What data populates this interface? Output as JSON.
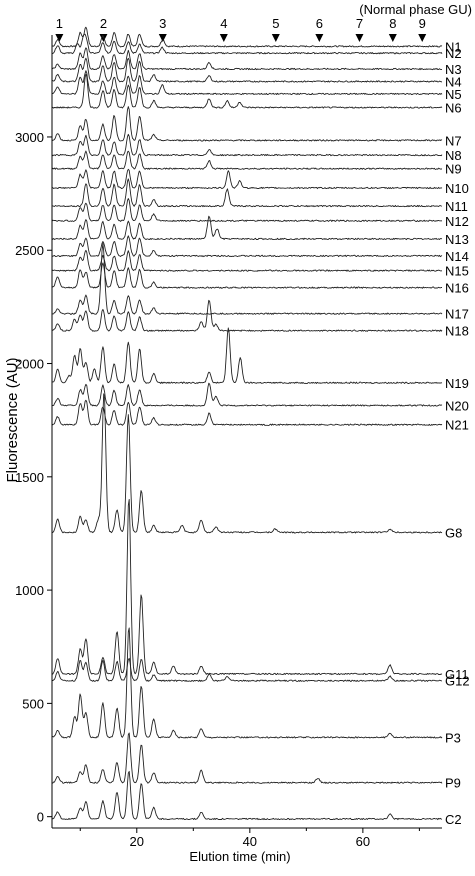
{
  "chart_data": {
    "type": "line",
    "title": "",
    "xlabel": "Elution time (min)",
    "ylabel": "Fluorescence (AU)",
    "xlim": [
      5,
      74
    ],
    "ylim": [
      -50,
      3450
    ],
    "x_ticks": [
      20,
      40,
      60
    ],
    "y_ticks": [
      0,
      500,
      1000,
      1500,
      2000,
      2500,
      3000
    ],
    "grid": false,
    "gu_axis_label": "(Normal phase GU)",
    "gu_markers": [
      {
        "label": "1",
        "time": 6.3
      },
      {
        "label": "2",
        "time": 14.1
      },
      {
        "label": "3",
        "time": 24.6
      },
      {
        "label": "4",
        "time": 35.4
      },
      {
        "label": "5",
        "time": 44.6
      },
      {
        "label": "6",
        "time": 52.3
      },
      {
        "label": "7",
        "time": 59.4
      },
      {
        "label": "8",
        "time": 65.3
      },
      {
        "label": "9",
        "time": 70.5
      }
    ],
    "series": [
      {
        "name": "N1",
        "baseline": 3400,
        "peaks": [
          [
            6,
            30
          ],
          [
            10,
            60
          ],
          [
            11,
            85
          ],
          [
            14,
            45
          ],
          [
            16,
            60
          ],
          [
            18.5,
            55
          ],
          [
            20.5,
            55
          ],
          [
            24.6,
            30
          ]
        ]
      },
      {
        "name": "N2",
        "baseline": 3370,
        "peaks": [
          [
            6,
            35
          ],
          [
            9.5,
            40
          ],
          [
            10.5,
            55
          ],
          [
            11,
            60
          ],
          [
            14,
            45
          ],
          [
            16,
            55
          ],
          [
            18.5,
            50
          ],
          [
            20.5,
            40
          ],
          [
            24.5,
            25
          ]
        ]
      },
      {
        "name": "N3",
        "baseline": 3300,
        "peaks": [
          [
            6,
            20
          ],
          [
            10,
            70
          ],
          [
            11,
            95
          ],
          [
            14,
            60
          ],
          [
            16,
            65
          ],
          [
            18.5,
            80
          ],
          [
            20.5,
            70
          ],
          [
            32.8,
            30
          ]
        ]
      },
      {
        "name": "N4",
        "baseline": 3245,
        "peaks": [
          [
            6,
            30
          ],
          [
            10,
            75
          ],
          [
            11,
            105
          ],
          [
            14,
            70
          ],
          [
            16,
            85
          ],
          [
            18.5,
            105
          ],
          [
            20.5,
            90
          ],
          [
            23,
            30
          ],
          [
            32.8,
            25
          ]
        ]
      },
      {
        "name": "N5",
        "baseline": 3190,
        "peaks": [
          [
            6,
            30
          ],
          [
            10,
            75
          ],
          [
            11,
            100
          ],
          [
            14,
            60
          ],
          [
            16,
            75
          ],
          [
            18.5,
            80
          ],
          [
            20.5,
            80
          ],
          [
            24.5,
            40
          ]
        ]
      },
      {
        "name": "N6",
        "baseline": 3130,
        "peaks": [
          [
            11,
            150
          ],
          [
            14,
            75
          ],
          [
            16,
            80
          ],
          [
            18.5,
            100
          ],
          [
            20.5,
            90
          ],
          [
            23,
            30
          ],
          [
            32.8,
            40
          ],
          [
            36,
            30
          ],
          [
            38.2,
            25
          ]
        ]
      },
      {
        "name": "N7",
        "baseline": 2985,
        "peaks": [
          [
            6,
            30
          ],
          [
            10,
            65
          ],
          [
            11,
            95
          ],
          [
            14,
            70
          ],
          [
            16,
            110
          ],
          [
            18.5,
            150
          ],
          [
            20.5,
            110
          ],
          [
            23,
            25
          ]
        ]
      },
      {
        "name": "N8",
        "baseline": 2920,
        "peaks": [
          [
            10,
            60
          ],
          [
            11,
            85
          ],
          [
            14,
            70
          ],
          [
            16,
            60
          ],
          [
            18.5,
            90
          ],
          [
            20.5,
            70
          ],
          [
            32.8,
            25
          ]
        ]
      },
      {
        "name": "N9",
        "baseline": 2860,
        "peaks": [
          [
            10,
            55
          ],
          [
            11,
            75
          ],
          [
            14,
            60
          ],
          [
            16,
            60
          ],
          [
            18.5,
            80
          ],
          [
            20.5,
            65
          ],
          [
            32.8,
            35
          ]
        ]
      },
      {
        "name": "N10",
        "baseline": 2775,
        "peaks": [
          [
            10,
            60
          ],
          [
            11,
            80
          ],
          [
            14,
            75
          ],
          [
            16,
            75
          ],
          [
            18.5,
            85
          ],
          [
            20.5,
            75
          ],
          [
            36.2,
            75
          ],
          [
            38.2,
            30
          ]
        ]
      },
      {
        "name": "N11",
        "baseline": 2695,
        "peaks": [
          [
            11,
            100
          ],
          [
            14,
            80
          ],
          [
            16,
            95
          ],
          [
            18.5,
            120
          ],
          [
            20.5,
            95
          ],
          [
            23,
            30
          ],
          [
            36,
            75
          ]
        ]
      },
      {
        "name": "N12",
        "baseline": 2630,
        "peaks": [
          [
            10,
            60
          ],
          [
            11,
            80
          ],
          [
            14,
            70
          ],
          [
            16,
            70
          ],
          [
            18.5,
            100
          ],
          [
            20.5,
            70
          ],
          [
            23,
            30
          ]
        ]
      },
      {
        "name": "N13",
        "baseline": 2550,
        "peaks": [
          [
            10,
            60
          ],
          [
            11,
            85
          ],
          [
            14,
            75
          ],
          [
            16,
            65
          ],
          [
            18.5,
            80
          ],
          [
            20.5,
            70
          ],
          [
            32.8,
            100
          ],
          [
            34.2,
            45
          ]
        ]
      },
      {
        "name": "N14",
        "baseline": 2475,
        "peaks": [
          [
            10,
            55
          ],
          [
            11,
            80
          ],
          [
            14,
            65
          ],
          [
            16,
            65
          ],
          [
            18.5,
            90
          ],
          [
            20.5,
            80
          ],
          [
            23,
            25
          ]
        ]
      },
      {
        "name": "N15",
        "baseline": 2410,
        "peaks": [
          [
            10,
            60
          ],
          [
            11,
            90
          ],
          [
            14,
            65
          ],
          [
            16,
            65
          ],
          [
            18.5,
            85
          ],
          [
            20.5,
            70
          ]
        ]
      },
      {
        "name": "N16",
        "baseline": 2335,
        "peaks": [
          [
            6,
            50
          ],
          [
            10,
            80
          ],
          [
            11,
            70
          ],
          [
            14,
            110
          ],
          [
            16,
            75
          ],
          [
            18.5,
            85
          ],
          [
            20.5,
            80
          ],
          [
            23,
            25
          ]
        ]
      },
      {
        "name": "N17",
        "baseline": 2220,
        "peaks": [
          [
            6,
            20
          ],
          [
            10,
            60
          ],
          [
            11,
            80
          ],
          [
            14,
            310
          ],
          [
            16,
            60
          ],
          [
            18.5,
            80
          ],
          [
            20.5,
            60
          ],
          [
            23,
            25
          ]
        ]
      },
      {
        "name": "N18",
        "baseline": 2145,
        "peaks": [
          [
            6,
            30
          ],
          [
            9,
            50
          ],
          [
            10,
            70
          ],
          [
            11,
            90
          ],
          [
            14,
            95
          ],
          [
            16,
            65
          ],
          [
            18.5,
            85
          ],
          [
            20.5,
            60
          ],
          [
            31.4,
            40
          ],
          [
            32.8,
            135
          ],
          [
            34,
            30
          ]
        ]
      },
      {
        "name": "N19",
        "baseline": 1915,
        "peaks": [
          [
            6,
            60
          ],
          [
            8,
            30
          ],
          [
            9,
            120
          ],
          [
            10,
            150
          ],
          [
            11,
            90
          ],
          [
            12.5,
            60
          ],
          [
            14,
            160
          ],
          [
            16,
            85
          ],
          [
            18.5,
            180
          ],
          [
            20.5,
            150
          ],
          [
            23,
            40
          ],
          [
            32.8,
            50
          ],
          [
            36.2,
            240
          ],
          [
            38.3,
            110
          ]
        ]
      },
      {
        "name": "N20",
        "baseline": 1815,
        "peaks": [
          [
            6,
            30
          ],
          [
            10,
            70
          ],
          [
            11,
            95
          ],
          [
            14,
            90
          ],
          [
            16,
            65
          ],
          [
            18.5,
            90
          ],
          [
            20.5,
            70
          ],
          [
            32.8,
            100
          ],
          [
            34,
            40
          ]
        ]
      },
      {
        "name": "N21",
        "baseline": 1730,
        "peaks": [
          [
            6,
            35
          ],
          [
            10,
            95
          ],
          [
            11,
            110
          ],
          [
            14,
            80
          ],
          [
            16,
            65
          ],
          [
            18.5,
            100
          ],
          [
            20.5,
            80
          ],
          [
            23,
            30
          ],
          [
            32.8,
            50
          ]
        ]
      },
      {
        "name": "G8",
        "baseline": 1255,
        "peaks": [
          [
            6,
            60
          ],
          [
            10,
            70
          ],
          [
            11,
            55
          ],
          [
            13.2,
            55
          ],
          [
            14.2,
            620
          ],
          [
            16.5,
            100
          ],
          [
            18.5,
            520
          ],
          [
            20.8,
            185
          ],
          [
            23,
            30
          ],
          [
            28,
            30
          ],
          [
            31.4,
            55
          ],
          [
            34,
            25
          ],
          [
            44.5,
            15
          ],
          [
            64.8,
            15
          ]
        ]
      },
      {
        "name": "G11",
        "baseline": 630,
        "peaks": [
          [
            6,
            70
          ],
          [
            10,
            110
          ],
          [
            11,
            155
          ],
          [
            14,
            75
          ],
          [
            16.5,
            190
          ],
          [
            18.6,
            780
          ],
          [
            20.8,
            350
          ],
          [
            23,
            50
          ],
          [
            26.5,
            35
          ],
          [
            31.4,
            35
          ],
          [
            64.8,
            40
          ]
        ]
      },
      {
        "name": "G12",
        "baseline": 600,
        "peaks": [
          [
            6,
            40
          ],
          [
            10,
            90
          ],
          [
            11,
            80
          ],
          [
            14,
            90
          ],
          [
            16.5,
            85
          ],
          [
            18.6,
            100
          ],
          [
            20.8,
            95
          ],
          [
            23,
            25
          ],
          [
            32.8,
            30
          ],
          [
            36,
            20
          ],
          [
            64.8,
            20
          ]
        ]
      },
      {
        "name": "P3",
        "baseline": 350,
        "peaks": [
          [
            6,
            30
          ],
          [
            9,
            90
          ],
          [
            10,
            190
          ],
          [
            11,
            110
          ],
          [
            14,
            150
          ],
          [
            16.5,
            130
          ],
          [
            18.6,
            490
          ],
          [
            20.8,
            230
          ],
          [
            23,
            80
          ],
          [
            26.5,
            30
          ],
          [
            31.4,
            40
          ],
          [
            64.8,
            20
          ]
        ]
      },
      {
        "name": "P9",
        "baseline": 150,
        "peaks": [
          [
            6,
            25
          ],
          [
            10,
            50
          ],
          [
            11,
            80
          ],
          [
            14,
            60
          ],
          [
            16.5,
            90
          ],
          [
            18.6,
            220
          ],
          [
            20.8,
            170
          ],
          [
            23,
            45
          ],
          [
            31.4,
            55
          ],
          [
            52,
            20
          ]
        ]
      },
      {
        "name": "C2",
        "baseline": -10,
        "peaks": [
          [
            6,
            30
          ],
          [
            10,
            50
          ],
          [
            11,
            75
          ],
          [
            14,
            80
          ],
          [
            16.5,
            120
          ],
          [
            18.6,
            210
          ],
          [
            20.8,
            160
          ],
          [
            23,
            50
          ],
          [
            31.4,
            30
          ],
          [
            64.8,
            20
          ]
        ]
      }
    ]
  }
}
